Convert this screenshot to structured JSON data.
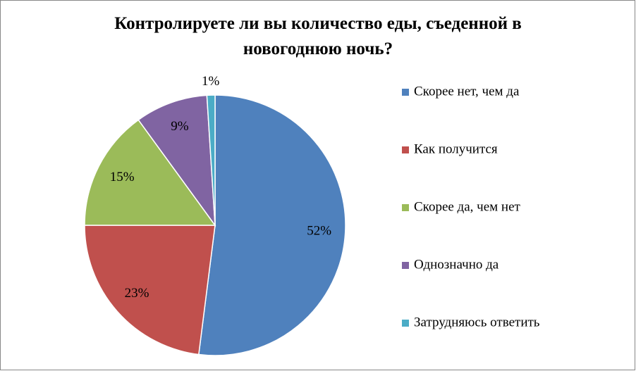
{
  "chart_data": {
    "type": "pie",
    "title": "Контролируете ли вы количество еды, съеденной в новогоднюю ночь?",
    "categories": [
      "Скорее нет, чем да",
      "Как получится",
      "Скорее да, чем нет",
      "Однозначно да",
      "Затрудняюсь ответить"
    ],
    "values": [
      52,
      23,
      15,
      9,
      1
    ],
    "value_labels": [
      "52%",
      "23%",
      "15%",
      "9%",
      "1%"
    ],
    "colors": [
      "#4f81bd",
      "#c0504d",
      "#9bbb59",
      "#8064a2",
      "#4bacc6"
    ],
    "legend": "right"
  }
}
